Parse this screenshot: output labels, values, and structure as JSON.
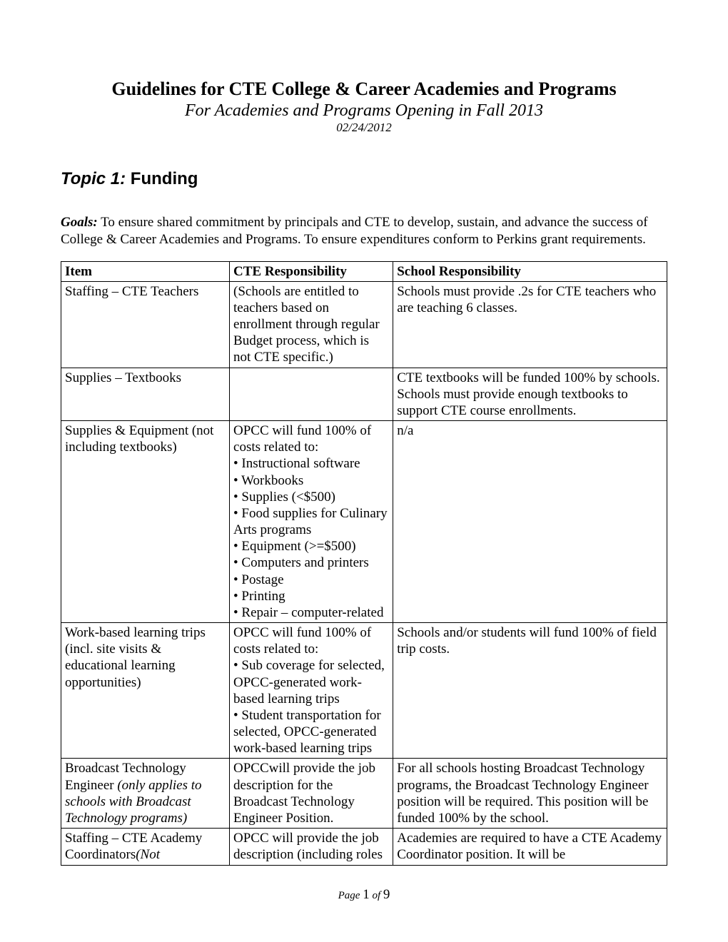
{
  "header": {
    "title": "Guidelines for CTE College & Career Academies and Programs",
    "subtitle": "For Academies and Programs Opening in Fall 2013",
    "date": "02/24/2012"
  },
  "topic": {
    "label": "Topic 1:",
    "name": "Funding"
  },
  "goals": {
    "label": "Goals:",
    "text": "  To ensure shared commitment by principals and CTE to develop, sustain, and advance the success of College & Career Academies and Programs.  To ensure expenditures conform to Perkins grant requirements."
  },
  "table": {
    "headers": [
      "Item",
      "CTE Responsibility",
      "School Responsibility"
    ],
    "rows": {
      "r1": {
        "item": "Staffing – CTE Teachers",
        "cte": "(Schools are entitled to teachers based on enrollment through regular Budget process, which is not CTE specific.)",
        "school": "Schools must provide .2s for CTE teachers who are teaching 6 classes."
      },
      "r2": {
        "item": "Supplies – Textbooks",
        "cte": "",
        "school": "CTE textbooks will be funded 100% by schools.  Schools must provide enough textbooks to support CTE course enrollments."
      },
      "r3": {
        "item": "Supplies & Equipment (not including textbooks)",
        "cte_intro": "OPCC will fund 100% of costs related to:",
        "cte_b1": "• Instructional software",
        "cte_b2": "• Workbooks",
        "cte_b3": "• Supplies (<$500)",
        "cte_b4": "• Food supplies for Culinary Arts programs",
        "cte_b5": "• Equipment (>=$500)",
        "cte_b6": "• Computers and printers",
        "cte_b7": "• Postage",
        "cte_b8": "• Printing",
        "cte_b9": "• Repair – computer-related",
        "school": "n/a"
      },
      "r4": {
        "item": "Work-based learning trips (incl. site visits & educational learning opportunities)",
        "cte_intro": "OPCC will fund 100% of costs related to:",
        "cte_b1": "• Sub coverage for selected, OPCC-generated work-based learning trips",
        "cte_b2": "• Student transportation for selected, OPCC-generated work-based learning trips",
        "school": "Schools and/or students will fund 100% of field trip costs."
      },
      "r5": {
        "item_l1": "Broadcast Technology Engineer ",
        "item_l2": "(only applies to schools with Broadcast Technology programs)",
        "cte": "OPCCwill provide the job description for the Broadcast Technology Engineer Position.",
        "school": "For all schools hosting Broadcast Technology programs, the Broadcast Technology Engineer position will be required.  This position will be funded 100% by the school."
      },
      "r6": {
        "item_l1": "Staffing – CTE Academy Coordinators",
        "item_l2": "(Not",
        "cte": "OPCC will provide the job description (including roles",
        "school": "Academies are required to have a CTE Academy Coordinator position. It will be"
      }
    }
  },
  "footer": {
    "prefix": "Page ",
    "current": "1",
    "mid": " of ",
    "total": "9"
  },
  "style": {
    "background": "#ffffff",
    "text_color": "#000000",
    "border_color": "#000000",
    "title_fontsize": 26,
    "subtitle_fontsize": 24,
    "body_fontsize": 19
  }
}
